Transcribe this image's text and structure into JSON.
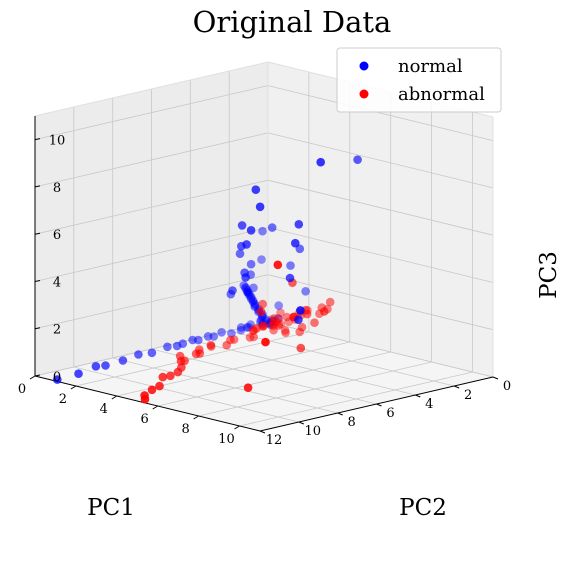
{
  "chart_data": {
    "type": "scatter",
    "projection": "3d",
    "title": "Original Data",
    "xlabel": "PC1",
    "ylabel": "PC2",
    "zlabel": "PC3",
    "xlim": [
      0,
      12
    ],
    "ylim": [
      0,
      11
    ],
    "zlim": [
      0,
      11
    ],
    "xticks": [
      "0",
      "2",
      "4",
      "6",
      "8",
      "10",
      "12"
    ],
    "yticks": [
      "0",
      "2",
      "4",
      "6",
      "8",
      "10"
    ],
    "zticks": [
      "0",
      "2",
      "4",
      "6",
      "8",
      "10"
    ],
    "grid": true,
    "legend_position": "top-right",
    "series": [
      {
        "name": "normal",
        "color": "#0000ff",
        "points": [
          [
            0.2,
            0.1,
            0.1
          ],
          [
            0.3,
            0.2,
            0.2
          ],
          [
            0.4,
            0.1,
            0.3
          ],
          [
            0.5,
            0.2,
            0.4
          ],
          [
            0.6,
            0.3,
            0.5
          ],
          [
            0.7,
            0.2,
            0.6
          ],
          [
            0.8,
            0.3,
            0.7
          ],
          [
            0.9,
            0.4,
            0.8
          ],
          [
            1.0,
            0.3,
            0.9
          ],
          [
            1.1,
            0.4,
            1.0
          ],
          [
            1.2,
            0.5,
            1.1
          ],
          [
            1.3,
            0.5,
            1.2
          ],
          [
            1.4,
            0.6,
            1.3
          ],
          [
            1.5,
            0.6,
            1.4
          ],
          [
            1.6,
            0.7,
            1.5
          ],
          [
            1.7,
            0.7,
            1.6
          ],
          [
            1.8,
            0.8,
            1.7
          ],
          [
            1.9,
            0.8,
            1.8
          ],
          [
            2.0,
            0.9,
            1.9
          ],
          [
            2.1,
            0.9,
            2.0
          ],
          [
            2.2,
            1.0,
            2.1
          ],
          [
            2.3,
            1.0,
            2.2
          ],
          [
            0.2,
            0.3,
            0.05
          ],
          [
            0.4,
            0.4,
            0.1
          ],
          [
            0.6,
            0.2,
            0.15
          ],
          [
            0.3,
            0.5,
            0.2
          ],
          [
            0.5,
            0.6,
            0.1
          ],
          [
            0.8,
            0.5,
            0.2
          ],
          [
            1.0,
            0.1,
            0.1
          ],
          [
            0.1,
            0.6,
            0.3
          ],
          [
            1.2,
            0.2,
            0.05
          ],
          [
            1.4,
            0.3,
            0.1
          ],
          [
            1.6,
            0.2,
            0.0
          ],
          [
            1.0,
            0.6,
            0.4
          ],
          [
            1.8,
            0.4,
            0.2
          ],
          [
            2.2,
            0.3,
            0.0
          ],
          [
            2.6,
            0.2,
            0.1
          ],
          [
            3.0,
            0.2,
            0.0
          ],
          [
            3.4,
            0.3,
            0.1
          ],
          [
            3.8,
            0.2,
            0.0
          ],
          [
            4.2,
            0.3,
            0.1
          ],
          [
            4.6,
            0.2,
            0.0
          ],
          [
            5.0,
            0.3,
            0.0
          ],
          [
            5.6,
            0.4,
            0.1
          ],
          [
            6.4,
            0.4,
            0.0
          ],
          [
            7.2,
            0.5,
            0.1
          ],
          [
            8.0,
            0.5,
            0.0
          ],
          [
            9.0,
            0.6,
            0.0
          ],
          [
            9.6,
            0.7,
            0.1
          ],
          [
            10.6,
            0.8,
            0.0
          ],
          [
            11.8,
            0.9,
            0.0
          ],
          [
            3.0,
            2.0,
            3.0
          ],
          [
            3.4,
            2.4,
            3.6
          ],
          [
            4.0,
            2.8,
            2.6
          ],
          [
            4.6,
            3.0,
            4.4
          ],
          [
            5.0,
            3.6,
            3.8
          ],
          [
            5.8,
            4.2,
            5.2
          ],
          [
            6.0,
            4.6,
            4.0
          ],
          [
            6.6,
            5.0,
            6.4
          ],
          [
            7.0,
            5.6,
            5.8
          ],
          [
            7.4,
            6.2,
            6.6
          ],
          [
            3.6,
            1.6,
            2.2
          ],
          [
            5.2,
            3.2,
            3.0
          ],
          [
            8.0,
            7.0,
            8.6
          ],
          [
            8.2,
            7.4,
            8.0
          ],
          [
            4.0,
            4.0,
            5.6
          ],
          [
            3.0,
            4.4,
            4.6
          ],
          [
            2.0,
            3.0,
            3.4
          ],
          [
            6.6,
            7.6,
            6.2
          ],
          [
            5.4,
            6.2,
            4.2
          ],
          [
            1.6,
            1.2,
            3.2
          ],
          [
            0.8,
            2.6,
            2.0
          ],
          [
            2.6,
            2.2,
            4.8
          ],
          [
            5.6,
            6.8,
            2.6
          ],
          [
            7.6,
            8.8,
            3.8
          ],
          [
            7.4,
            9.6,
            10.2
          ],
          [
            3.6,
            7.8,
            9.2
          ],
          [
            6.0,
            7.2,
            6.8
          ],
          [
            1.8,
            1.0,
            2.0
          ],
          [
            0.5,
            1.0,
            1.0
          ]
        ]
      },
      {
        "name": "abnormal",
        "color": "#ff0000",
        "points": [
          [
            0.1,
            0.3,
            0.2
          ],
          [
            0.2,
            0.5,
            0.3
          ],
          [
            0.3,
            0.7,
            0.2
          ],
          [
            0.4,
            0.9,
            0.4
          ],
          [
            0.2,
            1.2,
            0.3
          ],
          [
            0.5,
            1.4,
            0.6
          ],
          [
            0.3,
            1.6,
            0.5
          ],
          [
            0.6,
            1.8,
            0.7
          ],
          [
            0.4,
            2.0,
            0.8
          ],
          [
            0.7,
            2.2,
            1.0
          ],
          [
            0.5,
            2.4,
            1.1
          ],
          [
            0.8,
            2.6,
            1.2
          ],
          [
            0.3,
            2.8,
            1.0
          ],
          [
            0.1,
            3.0,
            1.2
          ],
          [
            0.6,
            3.2,
            1.4
          ],
          [
            0.2,
            0.8,
            0.6
          ],
          [
            0.4,
            1.0,
            0.2
          ],
          [
            0.9,
            1.1,
            0.3
          ],
          [
            1.1,
            1.3,
            0.5
          ],
          [
            1.3,
            1.5,
            0.4
          ],
          [
            1.5,
            1.7,
            0.3
          ],
          [
            1.2,
            2.0,
            0.2
          ],
          [
            1.0,
            2.5,
            0.3
          ],
          [
            0.7,
            1.5,
            0.1
          ],
          [
            0.9,
            0.6,
            0.1
          ],
          [
            0.5,
            0.2,
            0.0
          ],
          [
            1.6,
            0.8,
            0.1
          ],
          [
            1.8,
            1.0,
            0.2
          ],
          [
            2.0,
            1.2,
            0.0
          ],
          [
            2.4,
            1.4,
            0.1
          ],
          [
            2.8,
            1.0,
            0.0
          ],
          [
            3.2,
            1.2,
            0.1
          ],
          [
            3.6,
            1.4,
            0.0
          ],
          [
            4.0,
            1.0,
            0.0
          ],
          [
            4.4,
            1.4,
            0.1
          ],
          [
            4.8,
            1.2,
            0.0
          ],
          [
            5.2,
            1.6,
            0.0
          ],
          [
            5.6,
            1.8,
            0.1
          ],
          [
            6.0,
            1.4,
            0.0
          ],
          [
            6.4,
            2.0,
            0.0
          ],
          [
            6.8,
            2.2,
            0.1
          ],
          [
            7.2,
            2.6,
            0.0
          ],
          [
            7.8,
            3.0,
            0.0
          ],
          [
            8.4,
            3.2,
            0.0
          ],
          [
            9.0,
            3.4,
            0.1
          ],
          [
            9.8,
            4.0,
            0.0
          ],
          [
            10.4,
            4.2,
            0.0
          ],
          [
            11.2,
            4.6,
            0.0
          ],
          [
            11.6,
            5.0,
            0.0
          ],
          [
            4.6,
            3.8,
            1.4
          ],
          [
            5.2,
            4.6,
            2.4
          ],
          [
            4.0,
            5.4,
            0.8
          ],
          [
            3.8,
            4.8,
            3.4
          ],
          [
            9.4,
            8.8,
            2.8
          ],
          [
            9.4,
            9.4,
            6.2
          ],
          [
            2.2,
            4.0,
            1.6
          ],
          [
            3.0,
            5.6,
            2.2
          ],
          [
            5.4,
            6.4,
            2.6
          ],
          [
            2.8,
            2.4,
            1.8
          ],
          [
            1.4,
            3.6,
            1.0
          ],
          [
            0.8,
            3.8,
            1.8
          ],
          [
            3.6,
            3.2,
            1.2
          ],
          [
            2.4,
            2.8,
            0.9
          ],
          [
            1.2,
            2.8,
            0.6
          ],
          [
            8.4,
            7.0,
            0.3
          ]
        ]
      }
    ]
  }
}
